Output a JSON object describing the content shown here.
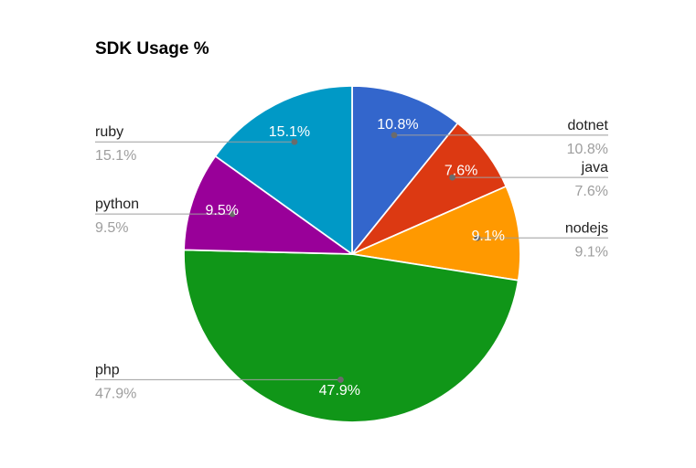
{
  "chart_data": {
    "type": "pie",
    "title": "SDK Usage %",
    "legend": "labeled",
    "direction": "clockwise",
    "start_angle_deg": 0,
    "categories": [
      "dotnet",
      "java",
      "nodejs",
      "php",
      "python",
      "ruby"
    ],
    "values": [
      10.8,
      7.6,
      9.1,
      47.9,
      9.5,
      15.1
    ],
    "series": [
      {
        "label": "dotnet",
        "value": 10.8,
        "percent_label": "10.8%",
        "color": "#3366CC"
      },
      {
        "label": "java",
        "value": 7.6,
        "percent_label": "7.6%",
        "color": "#DC3912"
      },
      {
        "label": "nodejs",
        "value": 9.1,
        "percent_label": "9.1%",
        "color": "#FF9900"
      },
      {
        "label": "php",
        "value": 47.9,
        "percent_label": "47.9%",
        "color": "#109618"
      },
      {
        "label": "python",
        "value": 9.5,
        "percent_label": "9.5%",
        "color": "#990099"
      },
      {
        "label": "ruby",
        "value": 15.1,
        "percent_label": "15.1%",
        "color": "#0099C6"
      }
    ],
    "colors": {
      "background": "#ffffff",
      "title_text": "#000000",
      "category_label_text": "#222222",
      "percent_label_text": "#9e9e9e",
      "slice_value_text": "#ffffff",
      "leader_line": "#9e9e9e",
      "leader_dot": "#6b6b6b",
      "slice_border": "#ffffff"
    }
  }
}
